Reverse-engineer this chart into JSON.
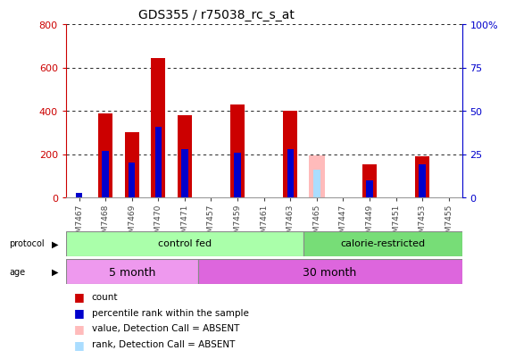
{
  "title": "GDS355 / r75038_rc_s_at",
  "samples": [
    "GSM7467",
    "GSM7468",
    "GSM7469",
    "GSM7470",
    "GSM7471",
    "GSM7457",
    "GSM7459",
    "GSM7461",
    "GSM7463",
    "GSM7465",
    "GSM7447",
    "GSM7449",
    "GSM7451",
    "GSM7453",
    "GSM7455"
  ],
  "red_values": [
    0,
    390,
    300,
    645,
    380,
    0,
    430,
    0,
    400,
    0,
    0,
    155,
    0,
    190,
    0
  ],
  "blue_values": [
    20,
    215,
    160,
    325,
    225,
    0,
    205,
    0,
    225,
    0,
    0,
    80,
    0,
    155,
    0
  ],
  "pink_values": [
    0,
    0,
    0,
    0,
    0,
    0,
    0,
    0,
    0,
    195,
    0,
    0,
    0,
    0,
    0
  ],
  "lightblue_values": [
    0,
    0,
    0,
    0,
    0,
    0,
    0,
    0,
    0,
    130,
    0,
    0,
    0,
    0,
    0
  ],
  "absent": [
    false,
    false,
    false,
    false,
    false,
    false,
    false,
    false,
    false,
    true,
    false,
    false,
    false,
    false,
    false
  ],
  "ylim_left": [
    0,
    800
  ],
  "ylim_right": [
    0,
    100
  ],
  "yticks_left": [
    0,
    200,
    400,
    600,
    800
  ],
  "yticks_right": [
    0,
    25,
    50,
    75,
    100
  ],
  "yticklabels_right": [
    "0",
    "25",
    "50",
    "75",
    "100%"
  ],
  "left_axis_color": "#cc0000",
  "right_axis_color": "#0000cc",
  "protocol_control_samples": 9,
  "protocol_calorie_samples": 6,
  "age_5month_samples": 5,
  "age_30month_samples": 10,
  "protocol_control_label": "control fed",
  "protocol_calorie_label": "calorie-restricted",
  "age_5_label": "5 month",
  "age_30_label": "30 month",
  "protocol_color": "#aaffaa",
  "calorie_color": "#77dd77",
  "age_5_color": "#ee99ee",
  "age_30_color": "#dd66dd",
  "legend_items": [
    {
      "label": "count",
      "color": "#cc0000"
    },
    {
      "label": "percentile rank within the sample",
      "color": "#0000cc"
    },
    {
      "label": "value, Detection Call = ABSENT",
      "color": "#ffbbbb"
    },
    {
      "label": "rank, Detection Call = ABSENT",
      "color": "#aaddff"
    }
  ],
  "background_color": "#ffffff",
  "plot_bg_color": "#ffffff"
}
